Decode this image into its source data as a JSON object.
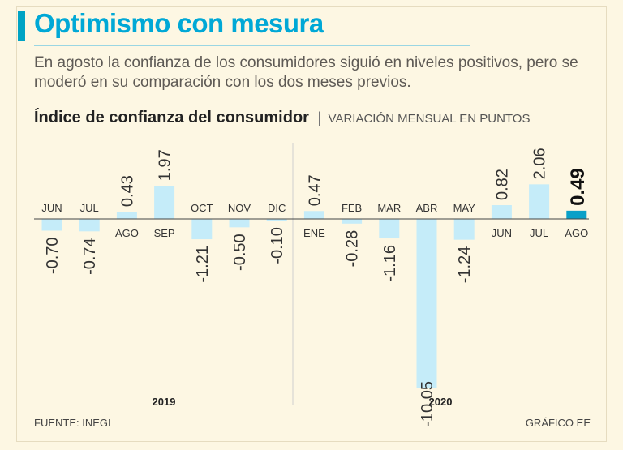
{
  "header": {
    "title": "Optimismo con mesura",
    "subtitle": "En agosto la confianza de los consumidores siguió en niveles positivos, pero se moderó en su comparación con los dos meses previos."
  },
  "chart_header": {
    "title": "Índice de confianza del consumidor",
    "separator": "|",
    "unit": "VARIACIÓN MENSUAL EN PUNTOS"
  },
  "footer": {
    "source": "FUENTE: INEGI",
    "credit": "GRÁFICO EE"
  },
  "colors": {
    "bar": "#c5ecf9",
    "highlight": "#0aa0c8",
    "text": "#333333"
  },
  "chart_data": {
    "type": "bar",
    "title": "Índice de confianza del consumidor",
    "ylabel": "VARIACIÓN MENSUAL EN PUNTOS",
    "categories": [
      "JUN",
      "JUL",
      "AGO",
      "SEP",
      "OCT",
      "NOV",
      "DIC",
      "ENE",
      "FEB",
      "MAR",
      "ABR",
      "MAY",
      "JUN",
      "JUL",
      "AGO"
    ],
    "years": [
      "2019",
      "2019",
      "2019",
      "2019",
      "2019",
      "2019",
      "2019",
      "2020",
      "2020",
      "2020",
      "2020",
      "2020",
      "2020",
      "2020",
      "2020"
    ],
    "values": [
      -0.7,
      -0.74,
      0.43,
      1.97,
      -1.21,
      -0.5,
      -0.1,
      0.47,
      -0.28,
      -1.16,
      -10.05,
      -1.24,
      0.82,
      2.06,
      0.49
    ],
    "value_labels": [
      "-0.70",
      "-0.74",
      "0.43",
      "1.97",
      "-1.21",
      "-0.50",
      "-0.10",
      "0.47",
      "-0.28",
      "-1.16",
      "-10.05",
      "-1.24",
      "0.82",
      "2.06",
      "0.49"
    ],
    "highlight_index": 14,
    "group_labels": [
      "2019",
      "2020"
    ],
    "ylim": [
      -10.5,
      2.5
    ]
  }
}
